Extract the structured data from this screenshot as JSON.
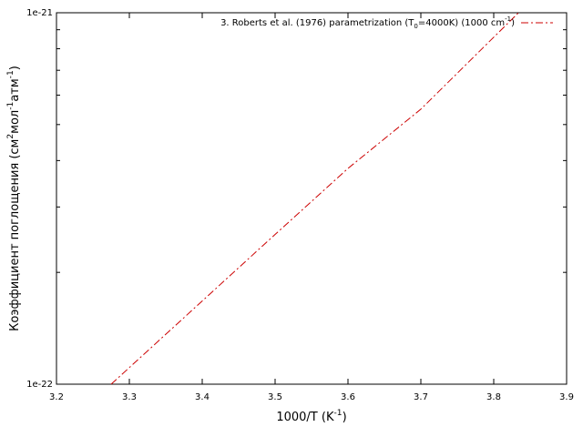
{
  "chart_data": {
    "type": "line",
    "x": [
      3.275,
      3.4,
      3.5,
      3.6,
      3.7,
      3.834
    ],
    "series": [
      {
        "name": [
          "3. Roberts et al. (1976) parametrization (T",
          "0",
          "=4000K) (1000 cm",
          "-1",
          ")"
        ],
        "color": "#cc0000",
        "values": [
          1e-22,
          1.675e-22,
          2.53e-22,
          3.81e-22,
          5.5e-22,
          1e-21
        ]
      }
    ],
    "xlabel": [
      "1000/T (K",
      "-1",
      ")"
    ],
    "ylabel": [
      "Коэффициент поглощения (см",
      "2",
      "мол",
      "-1",
      "атм",
      "-1",
      ")"
    ],
    "xlim": [
      3.2,
      3.9
    ],
    "xticks": [
      3.2,
      3.3,
      3.4,
      3.5,
      3.6,
      3.7,
      3.8,
      3.9
    ],
    "ylim": [
      1e-22,
      1e-21
    ],
    "yticks": [
      {
        "value": 1e-22,
        "label": "1e-22"
      },
      {
        "value": 1e-21,
        "label": "1e-21"
      }
    ],
    "yminor_ticks": [
      2e-22,
      3e-22,
      4e-22,
      5e-22,
      6e-22,
      7e-22,
      8e-22,
      9e-22
    ],
    "ylog": true,
    "legend": "top-right"
  }
}
